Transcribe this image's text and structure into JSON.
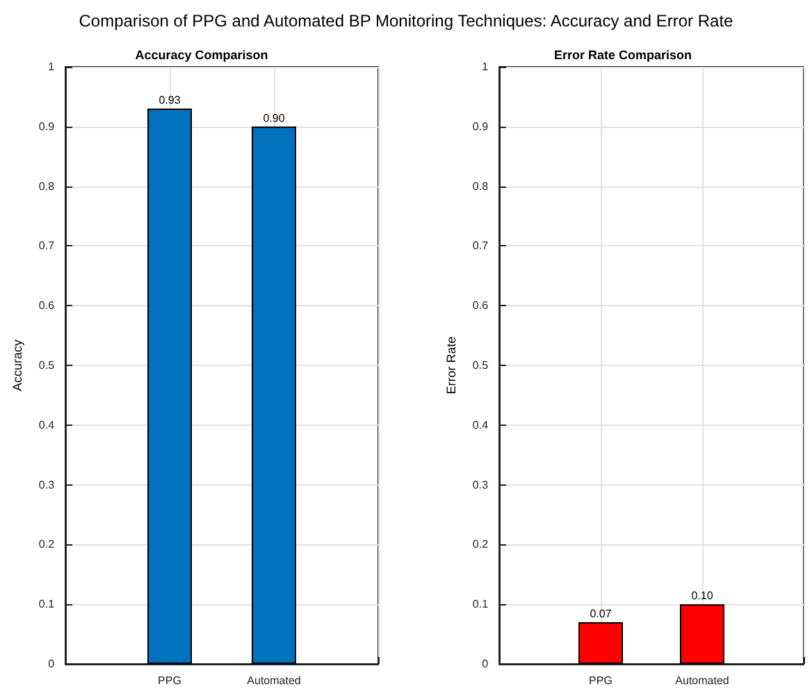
{
  "chart_data": [
    {
      "type": "bar",
      "title": "Accuracy Comparison",
      "ylabel": "Accuracy",
      "annotations": [
        "Comparison of PPG and Automated BP Monitoring Techniques: Accuracy and Error Rate"
      ],
      "categories": [
        "PPG",
        "Automated"
      ],
      "values": [
        0.93,
        0.9
      ],
      "value_labels": [
        "0.93",
        "0.90"
      ],
      "color": "#0072bd",
      "ylim": [
        0,
        1
      ],
      "yticks": [
        0,
        0.1,
        0.2,
        0.3,
        0.4,
        0.5,
        0.6,
        0.7,
        0.8,
        0.9,
        1
      ],
      "grid": true
    },
    {
      "type": "bar",
      "title": "Error Rate Comparison",
      "ylabel": "Error Rate",
      "categories": [
        "PPG",
        "Automated"
      ],
      "values": [
        0.07,
        0.1
      ],
      "value_labels": [
        "0.07",
        "0.10"
      ],
      "color": "#ff0000",
      "ylim": [
        0,
        1
      ],
      "yticks": [
        0,
        0.1,
        0.2,
        0.3,
        0.4,
        0.5,
        0.6,
        0.7,
        0.8,
        0.9,
        1
      ],
      "grid": true
    }
  ]
}
